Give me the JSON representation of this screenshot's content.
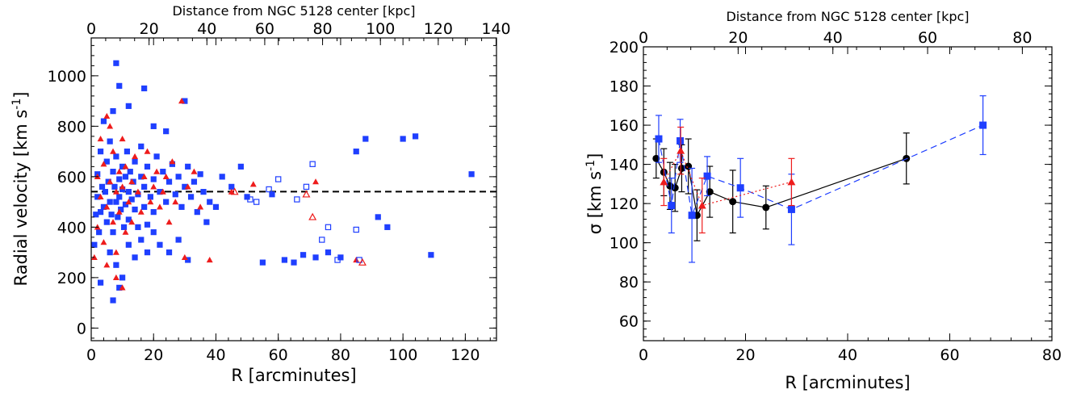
{
  "colors": {
    "blue": "#1f3fff",
    "red": "#ee1c1c",
    "black": "#000000"
  },
  "chart_data": [
    {
      "type": "scatter",
      "title": "",
      "xlabel": "R [arcminutes]",
      "ylabel": "Radial velocity [km s",
      "ylabel_sup": "-1",
      "ylabel_close": "]",
      "xlim": [
        0,
        130
      ],
      "ylim": [
        -50,
        1150
      ],
      "xticks": [
        0,
        20,
        40,
        60,
        80,
        100,
        120
      ],
      "yticks": [
        0,
        200,
        400,
        600,
        800,
        1000
      ],
      "top_axis": {
        "label": "Distance from NGC 5128 center [kpc]",
        "ticks": [
          0,
          20,
          40,
          60,
          80,
          100,
          120,
          140
        ],
        "kpc_per_arcmin": 1.078
      },
      "reference_line": {
        "y": 541,
        "style": "dashed",
        "color": "#000000"
      },
      "series": [
        {
          "marker": "filled-square",
          "color": "#1f3fff",
          "points": [
            [
              1,
              330
            ],
            [
              1.5,
              450
            ],
            [
              2,
              520
            ],
            [
              2,
              610
            ],
            [
              2.5,
              380
            ],
            [
              3,
              460
            ],
            [
              3,
              700
            ],
            [
              3.5,
              560
            ],
            [
              4,
              480
            ],
            [
              4,
              820
            ],
            [
              4.5,
              540
            ],
            [
              5,
              420
            ],
            [
              5,
              660
            ],
            [
              5.5,
              580
            ],
            [
              6,
              500
            ],
            [
              6,
              740
            ],
            [
              6.5,
              450
            ],
            [
              7,
              620
            ],
            [
              7,
              380
            ],
            [
              7.5,
              560
            ],
            [
              8,
              500
            ],
            [
              8,
              680
            ],
            [
              8.5,
              440
            ],
            [
              9,
              590
            ],
            [
              9,
              520
            ],
            [
              9.5,
              470
            ],
            [
              10,
              640
            ],
            [
              10,
              550
            ],
            [
              10.5,
              400
            ],
            [
              11,
              600
            ],
            [
              11,
              490
            ],
            [
              11.5,
              700
            ],
            [
              12,
              540
            ],
            [
              12,
              430
            ],
            [
              12.5,
              620
            ],
            [
              13,
              510
            ],
            [
              13.5,
              580
            ],
            [
              14,
              470
            ],
            [
              14,
              660
            ],
            [
              15,
              530
            ],
            [
              15,
              400
            ],
            [
              16,
              600
            ],
            [
              16,
              720
            ],
            [
              17,
              480
            ],
            [
              17,
              560
            ],
            [
              18,
              640
            ],
            [
              18,
              410
            ],
            [
              19,
              520
            ],
            [
              20,
              590
            ],
            [
              20,
              460
            ],
            [
              21,
              680
            ],
            [
              22,
              540
            ],
            [
              23,
              620
            ],
            [
              24,
              500
            ],
            [
              25,
              580
            ],
            [
              26,
              650
            ],
            [
              27,
              530
            ],
            [
              28,
              600
            ],
            [
              29,
              480
            ],
            [
              30,
              560
            ],
            [
              31,
              640
            ],
            [
              32,
              520
            ],
            [
              33,
              580
            ],
            [
              34,
              460
            ],
            [
              35,
              610
            ],
            [
              36,
              540
            ],
            [
              37,
              420
            ],
            [
              38,
              500
            ],
            [
              6,
              300
            ],
            [
              8,
              250
            ],
            [
              10,
              200
            ],
            [
              12,
              330
            ],
            [
              14,
              280
            ],
            [
              16,
              350
            ],
            [
              18,
              300
            ],
            [
              20,
              380
            ],
            [
              22,
              330
            ],
            [
              25,
              300
            ],
            [
              28,
              350
            ],
            [
              31,
              270
            ],
            [
              7,
              860
            ],
            [
              9,
              960
            ],
            [
              12,
              880
            ],
            [
              17,
              950
            ],
            [
              20,
              800
            ],
            [
              24,
              780
            ],
            [
              30,
              900
            ],
            [
              8,
              1050
            ],
            [
              3,
              180
            ],
            [
              7,
              110
            ],
            [
              9,
              160
            ],
            [
              40,
              480
            ],
            [
              42,
              600
            ],
            [
              45,
              560
            ],
            [
              48,
              640
            ],
            [
              50,
              520
            ],
            [
              55,
              260
            ],
            [
              58,
              530
            ],
            [
              62,
              270
            ],
            [
              65,
              260
            ],
            [
              68,
              290
            ],
            [
              72,
              280
            ],
            [
              76,
              300
            ],
            [
              80,
              280
            ],
            [
              85,
              700
            ],
            [
              88,
              750
            ],
            [
              92,
              440
            ],
            [
              95,
              400
            ],
            [
              100,
              750
            ],
            [
              104,
              760
            ],
            [
              109,
              290
            ],
            [
              122,
              610
            ]
          ]
        },
        {
          "marker": "filled-triangle",
          "color": "#ee1c1c",
          "points": [
            [
              1,
              280
            ],
            [
              2,
              400
            ],
            [
              2,
              600
            ],
            [
              3,
              520
            ],
            [
              3,
              750
            ],
            [
              4,
              340
            ],
            [
              4,
              650
            ],
            [
              5,
              480
            ],
            [
              5,
              250
            ],
            [
              6,
              580
            ],
            [
              6,
              800
            ],
            [
              7,
              420
            ],
            [
              7,
              700
            ],
            [
              8,
              540
            ],
            [
              8,
              300
            ],
            [
              9,
              620
            ],
            [
              9,
              460
            ],
            [
              10,
              560
            ],
            [
              10,
              750
            ],
            [
              11,
              380
            ],
            [
              11,
              640
            ],
            [
              12,
              500
            ],
            [
              13,
              580
            ],
            [
              13,
              420
            ],
            [
              14,
              680
            ],
            [
              15,
              540
            ],
            [
              16,
              460
            ],
            [
              17,
              600
            ],
            [
              18,
              700
            ],
            [
              19,
              500
            ],
            [
              20,
              560
            ],
            [
              21,
              620
            ],
            [
              22,
              480
            ],
            [
              23,
              540
            ],
            [
              24,
              600
            ],
            [
              25,
              420
            ],
            [
              26,
              660
            ],
            [
              27,
              500
            ],
            [
              29,
              900
            ],
            [
              30,
              280
            ],
            [
              31,
              560
            ],
            [
              33,
              620
            ],
            [
              35,
              480
            ],
            [
              38,
              270
            ],
            [
              45,
              540
            ],
            [
              52,
              570
            ],
            [
              72,
              580
            ],
            [
              85,
              270
            ],
            [
              5,
              840
            ],
            [
              8,
              200
            ],
            [
              10,
              160
            ]
          ]
        },
        {
          "marker": "open-square",
          "color": "#1f3fff",
          "points": [
            [
              51,
              510
            ],
            [
              53,
              500
            ],
            [
              57,
              550
            ],
            [
              60,
              590
            ],
            [
              66,
              510
            ],
            [
              69,
              560
            ],
            [
              71,
              650
            ],
            [
              74,
              350
            ],
            [
              76,
              400
            ],
            [
              79,
              270
            ],
            [
              85,
              390
            ],
            [
              86,
              270
            ]
          ]
        },
        {
          "marker": "open-triangle",
          "color": "#ee1c1c",
          "points": [
            [
              46,
              540
            ],
            [
              69,
              530
            ],
            [
              71,
              440
            ],
            [
              87,
              260
            ]
          ]
        }
      ]
    },
    {
      "type": "line",
      "title": "",
      "xlabel": "R [arcminutes]",
      "ylabel": "σ [km s",
      "ylabel_sup": "-1",
      "ylabel_close": "]",
      "xlim": [
        0,
        80
      ],
      "ylim": [
        50,
        200
      ],
      "xticks": [
        0,
        20,
        40,
        60,
        80
      ],
      "yticks": [
        60,
        80,
        100,
        120,
        140,
        160,
        180,
        200
      ],
      "top_axis": {
        "label": "Distance from NGC 5128 center [kpc]",
        "ticks": [
          0,
          20,
          40,
          60,
          80
        ],
        "kpc_per_arcmin": 1.078
      },
      "series": [
        {
          "marker": "circle",
          "color": "#000000",
          "line": "solid",
          "points": [
            [
              2.5,
              143,
              10
            ],
            [
              4,
              136,
              12
            ],
            [
              5.2,
              129,
              12
            ],
            [
              6.2,
              128,
              12
            ],
            [
              7.5,
              138,
              12
            ],
            [
              8.8,
              139,
              14
            ],
            [
              10.5,
              114,
              13
            ],
            [
              13,
              126,
              13
            ],
            [
              17.5,
              121,
              16
            ],
            [
              24,
              118,
              11
            ],
            [
              51.5,
              143,
              13
            ]
          ]
        },
        {
          "marker": "square",
          "color": "#1f3fff",
          "line": "dashed",
          "points": [
            [
              3,
              153,
              12
            ],
            [
              5.5,
              119,
              14
            ],
            [
              7.2,
              152,
              11
            ],
            [
              9.5,
              114,
              24
            ],
            [
              12.5,
              134,
              10
            ],
            [
              19,
              128,
              15
            ],
            [
              29,
              117,
              18
            ],
            [
              66.5,
              160,
              15
            ]
          ]
        },
        {
          "marker": "triangle",
          "color": "#ee1c1c",
          "line": "dotted",
          "points": [
            [
              4,
              131,
              12
            ],
            [
              7.3,
              147,
              12
            ],
            [
              11.5,
              119,
              14
            ],
            [
              29,
              131,
              12
            ]
          ]
        }
      ]
    }
  ]
}
